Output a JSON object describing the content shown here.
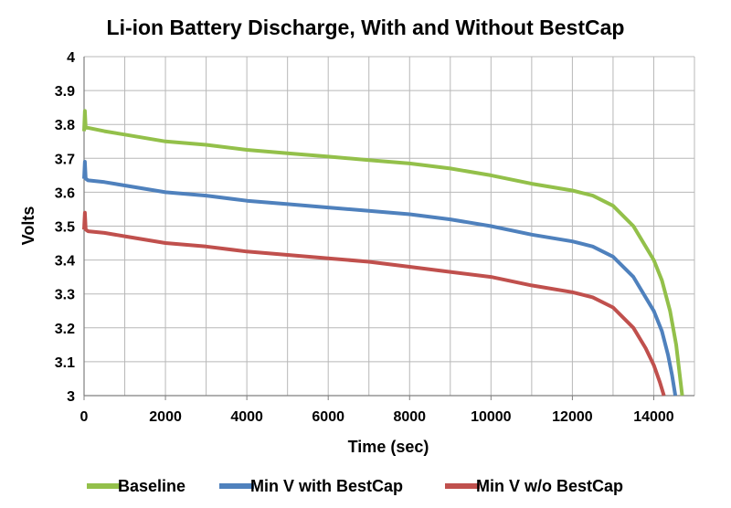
{
  "chart_data": {
    "type": "line",
    "title": "Li-ion Battery Discharge, With and Without BestCap",
    "xlabel": "Time (sec)",
    "ylabel": "Volts",
    "xlim": [
      0,
      15000
    ],
    "ylim": [
      3,
      4
    ],
    "x_ticks": [
      "0",
      "2000",
      "4000",
      "6000",
      "8000",
      "10000",
      "12000",
      "14000"
    ],
    "y_ticks": [
      "3",
      "3.1",
      "3.2",
      "3.3",
      "3.4",
      "3.5",
      "3.6",
      "3.7",
      "3.8",
      "3.9",
      "4"
    ],
    "grid": true,
    "legend_position": "bottom",
    "series": [
      {
        "name": "Baseline",
        "color": "#93c04a",
        "points": [
          [
            0,
            3.78
          ],
          [
            20,
            3.84
          ],
          [
            40,
            3.79
          ],
          [
            100,
            3.79
          ],
          [
            500,
            3.78
          ],
          [
            1000,
            3.77
          ],
          [
            2000,
            3.75
          ],
          [
            3000,
            3.74
          ],
          [
            4000,
            3.725
          ],
          [
            5000,
            3.715
          ],
          [
            6000,
            3.705
          ],
          [
            7000,
            3.695
          ],
          [
            8000,
            3.685
          ],
          [
            9000,
            3.67
          ],
          [
            10000,
            3.65
          ],
          [
            11000,
            3.625
          ],
          [
            12000,
            3.605
          ],
          [
            12500,
            3.59
          ],
          [
            13000,
            3.56
          ],
          [
            13500,
            3.5
          ],
          [
            14000,
            3.4
          ],
          [
            14200,
            3.34
          ],
          [
            14400,
            3.25
          ],
          [
            14550,
            3.15
          ],
          [
            14650,
            3.05
          ],
          [
            14700,
            3.0
          ]
        ]
      },
      {
        "name": "Min V with BestCap",
        "color": "#4f81bd",
        "points": [
          [
            0,
            3.64
          ],
          [
            20,
            3.69
          ],
          [
            40,
            3.64
          ],
          [
            100,
            3.635
          ],
          [
            500,
            3.63
          ],
          [
            1000,
            3.62
          ],
          [
            2000,
            3.6
          ],
          [
            3000,
            3.59
          ],
          [
            4000,
            3.575
          ],
          [
            5000,
            3.565
          ],
          [
            6000,
            3.555
          ],
          [
            7000,
            3.545
          ],
          [
            8000,
            3.535
          ],
          [
            9000,
            3.52
          ],
          [
            10000,
            3.5
          ],
          [
            11000,
            3.475
          ],
          [
            12000,
            3.455
          ],
          [
            12500,
            3.44
          ],
          [
            13000,
            3.41
          ],
          [
            13500,
            3.35
          ],
          [
            14000,
            3.25
          ],
          [
            14200,
            3.19
          ],
          [
            14350,
            3.12
          ],
          [
            14450,
            3.06
          ],
          [
            14530,
            3.0
          ]
        ]
      },
      {
        "name": "Min V w/o BestCap",
        "color": "#c0504d",
        "points": [
          [
            0,
            3.49
          ],
          [
            20,
            3.54
          ],
          [
            40,
            3.49
          ],
          [
            100,
            3.485
          ],
          [
            500,
            3.48
          ],
          [
            1000,
            3.47
          ],
          [
            2000,
            3.45
          ],
          [
            3000,
            3.44
          ],
          [
            4000,
            3.425
          ],
          [
            5000,
            3.415
          ],
          [
            6000,
            3.405
          ],
          [
            7000,
            3.395
          ],
          [
            8000,
            3.38
          ],
          [
            9000,
            3.365
          ],
          [
            10000,
            3.35
          ],
          [
            11000,
            3.325
          ],
          [
            12000,
            3.305
          ],
          [
            12500,
            3.29
          ],
          [
            13000,
            3.26
          ],
          [
            13500,
            3.2
          ],
          [
            13800,
            3.14
          ],
          [
            14000,
            3.09
          ],
          [
            14150,
            3.04
          ],
          [
            14250,
            3.0
          ]
        ]
      }
    ]
  }
}
